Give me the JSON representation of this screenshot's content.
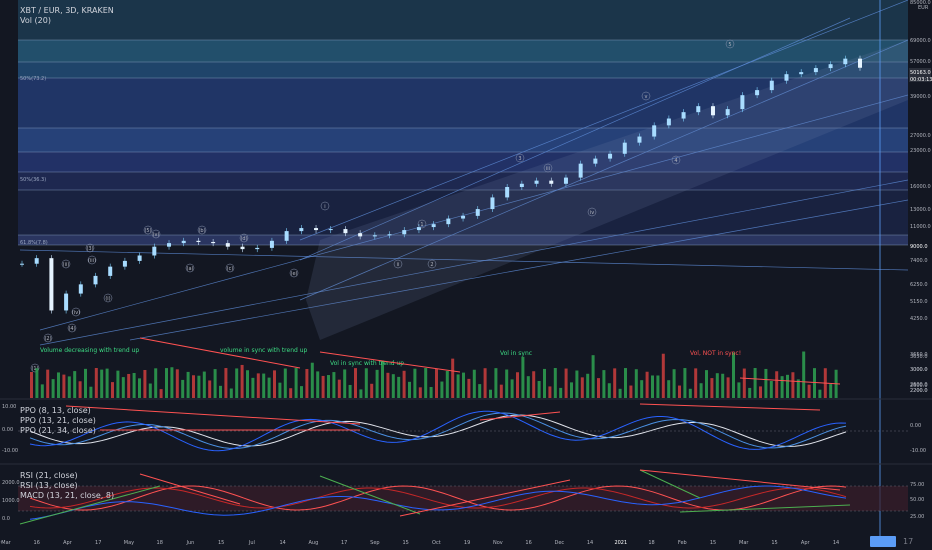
{
  "header": {
    "symbol": "XBT / EUR, 3D, KRAKEN",
    "volume_label": "Vol (20)"
  },
  "panes": {
    "ppo_labels": [
      "PPO (8, 13, close)",
      "PPO (13, 21, close)",
      "PPO (21, 34, close)"
    ],
    "rsi_labels": [
      "RSI (21, close)",
      "RSI (13, close)",
      "MACD (13, 21, close, 8)"
    ]
  },
  "footer": {
    "left_icon": "chevron-left-icon",
    "right_label": "17"
  },
  "chart_data": [
    {
      "type": "candlestick",
      "currency": "EUR",
      "price_axis_ticks": [
        "85000.0",
        "69000.0",
        "57000.0",
        "39000.0",
        "27000.0",
        "23000.0",
        "16000.0",
        "13000.0",
        "11000.0",
        "7400.0",
        "6250.0",
        "5150.0",
        "4250.0",
        "3650.0",
        "3000.0",
        "2600.0",
        "2200.0"
      ],
      "price_axis_extra": [
        "9000.0"
      ],
      "current_price_labels": [
        "50163.0",
        "00:03:13"
      ],
      "x_tick_labels": [
        "Mar",
        "16",
        "Apr",
        "17",
        "May",
        "18",
        "Jun",
        "15",
        "Jul",
        "14",
        "Aug",
        "17",
        "Sep",
        "15",
        "Oct",
        "19",
        "Nov",
        "16",
        "Dec",
        "14",
        "2021",
        "18",
        "Feb",
        "15",
        "Mar",
        "15",
        "Apr",
        "14"
      ],
      "close_series_approx": [
        6900,
        7300,
        4300,
        5100,
        5600,
        6100,
        6700,
        7100,
        7500,
        8200,
        8500,
        8700,
        8600,
        8500,
        8200,
        8000,
        8100,
        8700,
        9600,
        9900,
        9700,
        9800,
        9400,
        9100,
        9200,
        9300,
        9700,
        10000,
        10300,
        10900,
        11200,
        12000,
        13500,
        15000,
        15500,
        16000,
        15500,
        16500,
        19000,
        20000,
        21000,
        23500,
        25000,
        28000,
        30000,
        32000,
        34000,
        31000,
        33000,
        38000,
        40000,
        44000,
        47000,
        48000,
        50000,
        52000,
        55000,
        50163
      ],
      "horizontal_level_labels": [
        "50%(73.2)",
        "50%(36.3)",
        "61.8%(7.8)"
      ],
      "wave_labels": [
        "(1)",
        "(2)",
        "(3)",
        "(4)",
        "(5)",
        "(a)",
        "(b)",
        "(c)",
        "(d)",
        "(e)",
        "(i)",
        "(ii)",
        "(iii)",
        "(iv)",
        "(v)",
        "i",
        "ii",
        "iii",
        "iv",
        "v",
        "1",
        "2",
        "3",
        "4",
        "5"
      ]
    },
    {
      "type": "bar",
      "name": "Vol (20)",
      "axis_ticks": [
        "3650.0",
        "3000.0",
        "2600.0",
        "2200.0"
      ],
      "annotations": [
        "Volume decreasing with trend up",
        "volume in sync with trend up",
        "Vol in sync with trend up",
        "Vol in sync",
        "Vol, NOT in sync!"
      ]
    },
    {
      "type": "line",
      "series": [
        {
          "name": "PPO (8, 13, close)"
        },
        {
          "name": "PPO (13, 21, close)"
        },
        {
          "name": "PPO (21, 34, close)"
        }
      ],
      "left_ticks": [
        "10.00",
        "0.00",
        "-10.00"
      ],
      "right_ticks": [
        "0.00",
        "-10.00"
      ]
    },
    {
      "type": "line",
      "series": [
        {
          "name": "RSI (21, close)"
        },
        {
          "name": "RSI (13, close)"
        },
        {
          "name": "MACD (13, 21, close, 8)"
        }
      ],
      "left_ticks": [
        "2000.0",
        "1000.0",
        "0.0"
      ],
      "right_ticks": [
        "75.00",
        "50.00",
        "25.00"
      ]
    }
  ]
}
